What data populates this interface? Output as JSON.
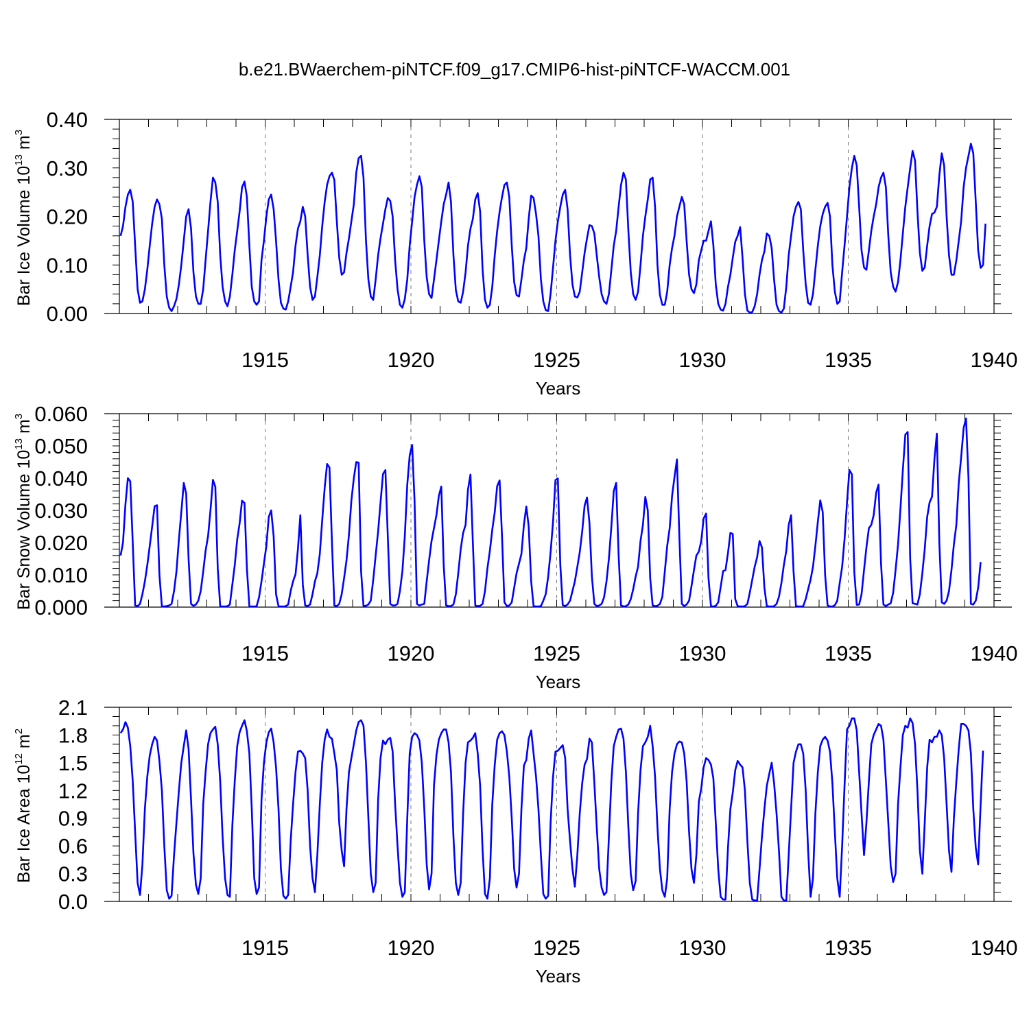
{
  "title": "b.e21.BWaerchem-piNTCF.f09_g17.CMIP6-hist-piNTCF-WACCM.001",
  "chart_data": [
    {
      "type": "line",
      "xlabel": "Years",
      "ylabel": {
        "text": "Bar Ice Volume 10",
        "exp": "13",
        "unit": " m",
        "unit_exp": "3"
      },
      "xlim": [
        1910,
        1940
      ],
      "ylim": [
        0.0,
        0.4
      ],
      "yticks": [
        "0.00",
        "0.10",
        "0.20",
        "0.30",
        "0.40"
      ],
      "yminor_step": 0.02,
      "xticks": [
        "1915",
        "1920",
        "1925",
        "1930",
        "1935",
        "1940"
      ],
      "grid": "dashed vertical lines at major x ticks",
      "line_color": "#0000ff",
      "x_start": 1910.0417,
      "x_step": 0.08333,
      "values": [
        0.16,
        0.18,
        0.22,
        0.245,
        0.255,
        0.23,
        0.14,
        0.05,
        0.022,
        0.025,
        0.05,
        0.09,
        0.14,
        0.185,
        0.22,
        0.235,
        0.225,
        0.195,
        0.1,
        0.035,
        0.012,
        0.005,
        0.015,
        0.03,
        0.06,
        0.1,
        0.15,
        0.2,
        0.215,
        0.175,
        0.085,
        0.035,
        0.02,
        0.02,
        0.05,
        0.11,
        0.17,
        0.23,
        0.28,
        0.27,
        0.23,
        0.12,
        0.055,
        0.025,
        0.015,
        0.035,
        0.08,
        0.13,
        0.17,
        0.21,
        0.26,
        0.272,
        0.24,
        0.14,
        0.055,
        0.025,
        0.018,
        0.025,
        0.11,
        0.15,
        0.2,
        0.235,
        0.245,
        0.215,
        0.15,
        0.07,
        0.022,
        0.01,
        0.008,
        0.025,
        0.055,
        0.085,
        0.14,
        0.175,
        0.19,
        0.22,
        0.2,
        0.12,
        0.055,
        0.028,
        0.035,
        0.075,
        0.12,
        0.18,
        0.23,
        0.265,
        0.283,
        0.29,
        0.275,
        0.19,
        0.115,
        0.08,
        0.085,
        0.125,
        0.155,
        0.19,
        0.225,
        0.29,
        0.32,
        0.325,
        0.28,
        0.15,
        0.07,
        0.035,
        0.028,
        0.07,
        0.12,
        0.155,
        0.185,
        0.215,
        0.238,
        0.232,
        0.2,
        0.11,
        0.05,
        0.018,
        0.012,
        0.03,
        0.07,
        0.14,
        0.19,
        0.24,
        0.265,
        0.283,
        0.26,
        0.15,
        0.075,
        0.04,
        0.032,
        0.07,
        0.11,
        0.15,
        0.19,
        0.225,
        0.245,
        0.27,
        0.23,
        0.12,
        0.048,
        0.025,
        0.022,
        0.045,
        0.085,
        0.14,
        0.175,
        0.195,
        0.235,
        0.248,
        0.21,
        0.09,
        0.028,
        0.012,
        0.018,
        0.055,
        0.12,
        0.17,
        0.21,
        0.24,
        0.265,
        0.27,
        0.24,
        0.14,
        0.065,
        0.038,
        0.035,
        0.07,
        0.11,
        0.135,
        0.195,
        0.243,
        0.238,
        0.205,
        0.16,
        0.07,
        0.025,
        0.007,
        0.005,
        0.04,
        0.095,
        0.15,
        0.19,
        0.22,
        0.245,
        0.255,
        0.215,
        0.12,
        0.06,
        0.035,
        0.033,
        0.045,
        0.085,
        0.125,
        0.155,
        0.182,
        0.18,
        0.165,
        0.12,
        0.075,
        0.04,
        0.025,
        0.02,
        0.04,
        0.09,
        0.14,
        0.17,
        0.22,
        0.265,
        0.29,
        0.276,
        0.17,
        0.085,
        0.04,
        0.028,
        0.045,
        0.1,
        0.16,
        0.2,
        0.235,
        0.276,
        0.28,
        0.22,
        0.1,
        0.038,
        0.018,
        0.018,
        0.045,
        0.1,
        0.135,
        0.16,
        0.2,
        0.22,
        0.24,
        0.225,
        0.15,
        0.08,
        0.05,
        0.042,
        0.06,
        0.11,
        0.13,
        0.15,
        0.15,
        0.17,
        0.19,
        0.14,
        0.06,
        0.02,
        0.008,
        0.006,
        0.02,
        0.055,
        0.08,
        0.115,
        0.148,
        0.16,
        0.178,
        0.115,
        0.04,
        0.006,
        0.002,
        0.003,
        0.015,
        0.04,
        0.08,
        0.11,
        0.128,
        0.165,
        0.16,
        0.135,
        0.07,
        0.018,
        0.005,
        0.002,
        0.01,
        0.055,
        0.12,
        0.16,
        0.2,
        0.22,
        0.23,
        0.215,
        0.13,
        0.06,
        0.022,
        0.018,
        0.04,
        0.09,
        0.14,
        0.18,
        0.205,
        0.22,
        0.228,
        0.2,
        0.1,
        0.045,
        0.02,
        0.025,
        0.085,
        0.14,
        0.2,
        0.26,
        0.3,
        0.325,
        0.305,
        0.22,
        0.13,
        0.095,
        0.09,
        0.13,
        0.17,
        0.2,
        0.225,
        0.26,
        0.28,
        0.29,
        0.26,
        0.16,
        0.085,
        0.055,
        0.045,
        0.065,
        0.11,
        0.165,
        0.22,
        0.26,
        0.3,
        0.335,
        0.315,
        0.21,
        0.125,
        0.088,
        0.095,
        0.14,
        0.18,
        0.205,
        0.208,
        0.22,
        0.285,
        0.33,
        0.305,
        0.2,
        0.12,
        0.08,
        0.08,
        0.11,
        0.15,
        0.19,
        0.26,
        0.3,
        0.325,
        0.35,
        0.33,
        0.23,
        0.13,
        0.094,
        0.1,
        0.185
      ]
    },
    {
      "type": "line",
      "xlabel": "Years",
      "ylabel": {
        "text": "Bar Snow Volume 10",
        "exp": "13",
        "unit": " m",
        "unit_exp": "3"
      },
      "xlim": [
        1910,
        1940
      ],
      "ylim": [
        0.0,
        0.06
      ],
      "yticks": [
        "0.000",
        "0.010",
        "0.020",
        "0.030",
        "0.040",
        "0.050",
        "0.060"
      ],
      "yminor_step": 0.002,
      "xticks": [
        "1915",
        "1920",
        "1925",
        "1930",
        "1935",
        "1940"
      ],
      "grid": "dashed vertical lines at major x ticks",
      "line_color": "#0000ff",
      "x_start": 1910.0417,
      "x_step": 0.08333,
      "values": [
        0.016,
        0.02,
        0.032,
        0.04,
        0.039,
        0.02,
        0.0005,
        0.0003,
        0.001,
        0.004,
        0.008,
        0.013,
        0.019,
        0.025,
        0.0313,
        0.0316,
        0.01,
        0.0002,
        0.0002,
        0.0003,
        0.0005,
        0.001,
        0.005,
        0.011,
        0.021,
        0.0295,
        0.0385,
        0.0352,
        0.015,
        0.001,
        0.0004,
        0.0008,
        0.002,
        0.005,
        0.011,
        0.0175,
        0.022,
        0.03,
        0.0395,
        0.0373,
        0.012,
        0.0003,
        0.0002,
        0.0002,
        0.0003,
        0.0008,
        0.007,
        0.013,
        0.021,
        0.026,
        0.033,
        0.0323,
        0.012,
        0.0003,
        0.0002,
        0.0002,
        0.0003,
        0.003,
        0.008,
        0.0135,
        0.019,
        0.028,
        0.03,
        0.022,
        0.004,
        0.0003,
        0.0002,
        0.0002,
        0.0003,
        0.0008,
        0.005,
        0.008,
        0.0102,
        0.018,
        0.0285,
        0.007,
        0.0005,
        0.0003,
        0.0008,
        0.004,
        0.008,
        0.0105,
        0.0165,
        0.027,
        0.037,
        0.0444,
        0.0433,
        0.02,
        0.0005,
        0.0003,
        0.001,
        0.004,
        0.009,
        0.0145,
        0.0225,
        0.033,
        0.04,
        0.045,
        0.0448,
        0.011,
        0.0003,
        0.0004,
        0.0008,
        0.002,
        0.0085,
        0.016,
        0.0235,
        0.0325,
        0.0413,
        0.0425,
        0.022,
        0.001,
        0.0005,
        0.0005,
        0.001,
        0.005,
        0.0112,
        0.022,
        0.038,
        0.047,
        0.0503,
        0.033,
        0.001,
        0.0005,
        0.0008,
        0.001,
        0.008,
        0.0145,
        0.0205,
        0.0245,
        0.0285,
        0.0345,
        0.0374,
        0.013,
        0.0005,
        0.0003,
        0.0003,
        0.0008,
        0.004,
        0.0105,
        0.018,
        0.023,
        0.0255,
        0.0365,
        0.0411,
        0.02,
        0.0005,
        0.0003,
        0.0004,
        0.001,
        0.005,
        0.012,
        0.0175,
        0.024,
        0.0295,
        0.0375,
        0.0393,
        0.022,
        0.0015,
        0.0003,
        0.0005,
        0.0015,
        0.006,
        0.0105,
        0.0135,
        0.0165,
        0.0255,
        0.0312,
        0.025,
        0.008,
        0.0003,
        0.0002,
        0.0002,
        0.0003,
        0.002,
        0.004,
        0.0095,
        0.017,
        0.0265,
        0.0394,
        0.0399,
        0.013,
        0.0006,
        0.0003,
        0.0008,
        0.002,
        0.005,
        0.008,
        0.0125,
        0.017,
        0.0235,
        0.0315,
        0.034,
        0.026,
        0.0095,
        0.001,
        0.0003,
        0.0005,
        0.001,
        0.003,
        0.008,
        0.015,
        0.025,
        0.036,
        0.0385,
        0.016,
        0.0005,
        0.0002,
        0.0003,
        0.0008,
        0.0025,
        0.0055,
        0.0095,
        0.0125,
        0.0205,
        0.0255,
        0.0342,
        0.03,
        0.009,
        0.0005,
        0.0003,
        0.0004,
        0.001,
        0.0032,
        0.011,
        0.019,
        0.0245,
        0.0345,
        0.0403,
        0.0458,
        0.022,
        0.001,
        0.0003,
        0.0008,
        0.002,
        0.0065,
        0.0115,
        0.016,
        0.0172,
        0.0205,
        0.0275,
        0.029,
        0.009,
        0.0003,
        0.0002,
        0.0004,
        0.0015,
        0.0062,
        0.0112,
        0.0115,
        0.0168,
        0.023,
        0.0227,
        0.0025,
        0.0003,
        0.0002,
        0.0002,
        0.0003,
        0.001,
        0.0045,
        0.0085,
        0.0125,
        0.0155,
        0.0205,
        0.0185,
        0.006,
        0.0003,
        0.0002,
        0.0002,
        0.0003,
        0.001,
        0.0032,
        0.0075,
        0.013,
        0.0175,
        0.0255,
        0.0285,
        0.011,
        0.0003,
        0.0002,
        0.0002,
        0.0003,
        0.0025,
        0.0055,
        0.0085,
        0.0125,
        0.019,
        0.0265,
        0.0331,
        0.0295,
        0.01,
        0.0005,
        0.0002,
        0.0002,
        0.0006,
        0.002,
        0.0075,
        0.0125,
        0.021,
        0.0325,
        0.0425,
        0.0412,
        0.011,
        0.0007,
        0.0008,
        0.004,
        0.0115,
        0.0185,
        0.0245,
        0.0255,
        0.0285,
        0.0355,
        0.038,
        0.0135,
        0.0008,
        0.0003,
        0.0008,
        0.0012,
        0.0045,
        0.0115,
        0.0195,
        0.0305,
        0.0425,
        0.0535,
        0.0543,
        0.015,
        0.0012,
        0.001,
        0.0008,
        0.004,
        0.0105,
        0.018,
        0.028,
        0.0325,
        0.0342,
        0.046,
        0.0538,
        0.02,
        0.0015,
        0.001,
        0.002,
        0.005,
        0.0115,
        0.0195,
        0.0255,
        0.0385,
        0.0465,
        0.0555,
        0.0585,
        0.04,
        0.001,
        0.0008,
        0.002,
        0.006,
        0.014
      ]
    },
    {
      "type": "line",
      "xlabel": "Years",
      "ylabel": {
        "text": "Bar Ice Area 10",
        "exp": "12",
        "unit": " m",
        "unit_exp": "2"
      },
      "xlim": [
        1910,
        1940
      ],
      "ylim": [
        0.0,
        2.1
      ],
      "yticks": [
        "0.0",
        "0.3",
        "0.6",
        "0.9",
        "1.2",
        "1.5",
        "1.8",
        "2.1"
      ],
      "yminor_step": 0.1,
      "xticks": [
        "1915",
        "1920",
        "1925",
        "1930",
        "1935",
        "1940"
      ],
      "grid": "dashed vertical lines at major x ticks",
      "line_color": "#0000ff",
      "x_start": 1910.0417,
      "x_step": 0.08333,
      "values": [
        1.82,
        1.86,
        1.94,
        1.88,
        1.68,
        1.3,
        0.75,
        0.2,
        0.07,
        0.4,
        1.0,
        1.35,
        1.58,
        1.7,
        1.78,
        1.74,
        1.52,
        1.2,
        0.6,
        0.12,
        0.03,
        0.06,
        0.5,
        0.85,
        1.2,
        1.5,
        1.68,
        1.85,
        1.65,
        1.1,
        0.52,
        0.18,
        0.08,
        0.25,
        1.05,
        1.4,
        1.7,
        1.82,
        1.86,
        1.89,
        1.7,
        1.3,
        0.7,
        0.25,
        0.07,
        0.05,
        0.82,
        1.3,
        1.68,
        1.83,
        1.9,
        1.96,
        1.84,
        1.6,
        1.0,
        0.25,
        0.08,
        0.15,
        1.1,
        1.5,
        1.72,
        1.83,
        1.87,
        1.72,
        1.45,
        1.0,
        0.35,
        0.06,
        0.03,
        0.07,
        0.65,
        1.05,
        1.4,
        1.62,
        1.63,
        1.6,
        1.55,
        1.2,
        0.6,
        0.25,
        0.1,
        0.5,
        1.05,
        1.5,
        1.75,
        1.86,
        1.78,
        1.76,
        1.6,
        1.42,
        0.85,
        0.55,
        0.38,
        1.0,
        1.4,
        1.55,
        1.7,
        1.85,
        1.94,
        1.96,
        1.9,
        1.5,
        0.9,
        0.3,
        0.1,
        0.2,
        1.1,
        1.55,
        1.74,
        1.7,
        1.75,
        1.77,
        1.62,
        1.05,
        0.6,
        0.2,
        0.05,
        0.1,
        0.9,
        1.6,
        1.78,
        1.82,
        1.8,
        1.74,
        1.5,
        1.0,
        0.4,
        0.13,
        0.3,
        1.25,
        1.58,
        1.75,
        1.82,
        1.86,
        1.86,
        1.72,
        1.4,
        0.7,
        0.2,
        0.07,
        0.2,
        0.95,
        1.5,
        1.72,
        1.74,
        1.77,
        1.82,
        1.6,
        1.25,
        0.55,
        0.08,
        0.03,
        0.25,
        1.05,
        1.48,
        1.75,
        1.82,
        1.84,
        1.8,
        1.62,
        1.35,
        0.9,
        0.35,
        0.15,
        0.3,
        1.0,
        1.47,
        1.53,
        1.76,
        1.85,
        1.6,
        1.35,
        1.0,
        0.5,
        0.08,
        0.03,
        0.06,
        0.85,
        1.35,
        1.62,
        1.63,
        1.66,
        1.69,
        1.55,
        1.0,
        0.65,
        0.35,
        0.16,
        0.5,
        0.95,
        1.28,
        1.48,
        1.54,
        1.76,
        1.72,
        1.28,
        0.8,
        0.35,
        0.15,
        0.07,
        0.1,
        0.7,
        1.3,
        1.68,
        1.78,
        1.86,
        1.87,
        1.76,
        1.4,
        0.8,
        0.3,
        0.12,
        0.22,
        0.95,
        1.42,
        1.68,
        1.72,
        1.78,
        1.9,
        1.68,
        1.35,
        0.8,
        0.35,
        0.12,
        0.05,
        0.25,
        1.0,
        1.4,
        1.6,
        1.7,
        1.73,
        1.72,
        1.6,
        1.3,
        0.75,
        0.35,
        0.2,
        0.5,
        1.08,
        1.22,
        1.45,
        1.55,
        1.53,
        1.48,
        1.33,
        0.85,
        0.35,
        0.05,
        0.02,
        0.02,
        0.58,
        1.0,
        1.18,
        1.42,
        1.52,
        1.48,
        1.45,
        1.2,
        0.65,
        0.2,
        0.02,
        0.01,
        0.01,
        0.35,
        0.7,
        1.0,
        1.25,
        1.38,
        1.5,
        1.28,
        0.95,
        0.55,
        0.05,
        0.01,
        0.01,
        0.5,
        1.0,
        1.5,
        1.62,
        1.7,
        1.7,
        1.6,
        1.2,
        0.55,
        0.05,
        0.25,
        0.95,
        1.4,
        1.68,
        1.75,
        1.78,
        1.74,
        1.62,
        1.28,
        0.75,
        0.25,
        0.05,
        0.6,
        1.25,
        1.86,
        1.9,
        1.98,
        1.98,
        1.85,
        1.4,
        0.95,
        0.5,
        0.85,
        1.3,
        1.7,
        1.8,
        1.86,
        1.92,
        1.9,
        1.75,
        1.3,
        0.85,
        0.38,
        0.21,
        0.3,
        1.05,
        1.45,
        1.8,
        1.9,
        1.88,
        1.98,
        1.93,
        1.7,
        1.2,
        0.55,
        0.3,
        0.85,
        1.45,
        1.75,
        1.72,
        1.78,
        1.78,
        1.85,
        1.8,
        1.55,
        1.05,
        0.55,
        0.32,
        0.9,
        1.3,
        1.65,
        1.92,
        1.92,
        1.9,
        1.85,
        1.6,
        1.0,
        0.58,
        0.4,
        1.05,
        1.63
      ]
    }
  ]
}
